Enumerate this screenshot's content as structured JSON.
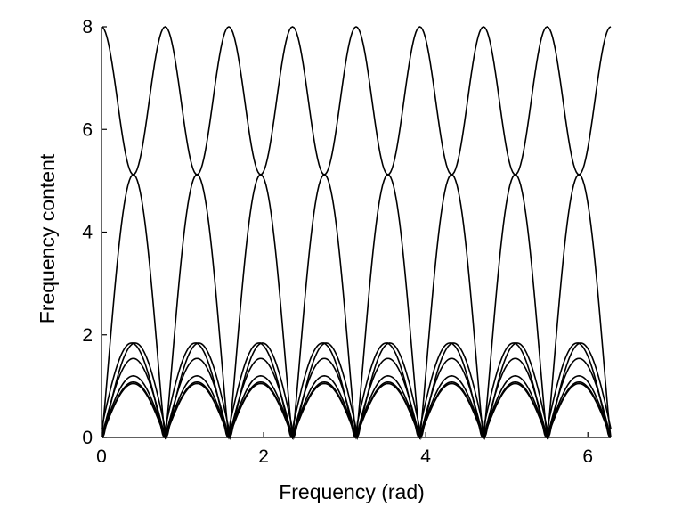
{
  "chart_data": {
    "type": "line",
    "title": "",
    "xlabel": "Frequency (rad)",
    "ylabel": "Frequency content",
    "xlim": [
      0,
      6.2832
    ],
    "ylim": [
      0,
      8
    ],
    "xticks": [
      0,
      2,
      4,
      6
    ],
    "yticks": [
      0,
      2,
      4,
      6,
      8
    ],
    "xtick_labels": [
      "0",
      "2",
      "4",
      "6"
    ],
    "ytick_labels": [
      "0",
      "2",
      "4",
      "6",
      "8"
    ],
    "grid": false,
    "legend": "none",
    "line_color": "#000000",
    "series": [
      {
        "kind": "main-lobe",
        "x": [
          0,
          0.3927,
          0.7854,
          1.1781,
          1.5708,
          1.9635,
          2.3562,
          2.7489,
          3.1416,
          3.5343,
          3.927,
          4.3197,
          4.7124,
          5.1051,
          5.4978,
          5.8905,
          6.2832
        ],
        "y": [
          8,
          5.12,
          0,
          5.12,
          8,
          5.12,
          0,
          5.12,
          8,
          5.12,
          0,
          5.12,
          8,
          5.12,
          0,
          5.12,
          8
        ]
      },
      {
        "kind": "main-lobe",
        "x": [
          0,
          0.3927,
          0.7854,
          1.1781,
          1.5708,
          1.9635,
          2.3562,
          2.7489,
          3.1416,
          3.5343,
          3.927,
          4.3197,
          4.7124,
          5.1051,
          5.4978,
          5.8905,
          6.2832
        ],
        "y": [
          0,
          5.12,
          8,
          5.12,
          0,
          5.12,
          8,
          5.12,
          0,
          5.12,
          8,
          5.12,
          0,
          5.12,
          8,
          5.12,
          0
        ]
      },
      {
        "kind": "side-lobe",
        "x": [
          0,
          0.3927,
          0.7854,
          1.1781,
          1.5708,
          1.9635,
          2.3562,
          2.7489,
          3.1416,
          3.5343,
          3.927,
          4.3197,
          4.7124,
          5.1051,
          5.4978,
          5.8905,
          6.2832
        ],
        "y": [
          0,
          1.84,
          0,
          1.84,
          0,
          1.84,
          0,
          1.84,
          0,
          1.84,
          0,
          1.84,
          0,
          1.84,
          0,
          1.84,
          0
        ],
        "peak_offset": -0.06
      },
      {
        "kind": "side-lobe",
        "x": [
          0,
          0.3927,
          0.7854,
          1.1781,
          1.5708,
          1.9635,
          2.3562,
          2.7489,
          3.1416,
          3.5343,
          3.927,
          4.3197,
          4.7124,
          5.1051,
          5.4978,
          5.8905,
          6.2832
        ],
        "y": [
          0,
          1.84,
          0,
          1.84,
          0,
          1.84,
          0,
          1.84,
          0,
          1.84,
          0,
          1.84,
          0,
          1.84,
          0,
          1.84,
          0
        ],
        "peak_offset": 0.06
      },
      {
        "kind": "side-lobe",
        "x": [
          0,
          0.3927,
          0.7854,
          1.1781,
          1.5708,
          1.9635,
          2.3562,
          2.7489,
          3.1416,
          3.5343,
          3.927,
          4.3197,
          4.7124,
          5.1051,
          5.4978,
          5.8905,
          6.2832
        ],
        "y": [
          0,
          1.54,
          0,
          1.54,
          0,
          1.54,
          0,
          1.54,
          0,
          1.54,
          0,
          1.54,
          0,
          1.54,
          0,
          1.54,
          0
        ],
        "peak_offset": 0
      },
      {
        "kind": "side-lobe",
        "x": [
          0,
          0.3927,
          0.7854,
          1.1781,
          1.5708,
          1.9635,
          2.3562,
          2.7489,
          3.1416,
          3.5343,
          3.927,
          4.3197,
          4.7124,
          5.1051,
          5.4978,
          5.8905,
          6.2832
        ],
        "y": [
          0,
          1.2,
          0,
          1.2,
          0,
          1.2,
          0,
          1.2,
          0,
          1.2,
          0,
          1.2,
          0,
          1.2,
          0,
          1.2,
          0
        ],
        "peak_offset": 0
      },
      {
        "kind": "side-lobe",
        "x": [
          0,
          0.3927,
          0.7854,
          1.1781,
          1.5708,
          1.9635,
          2.3562,
          2.7489,
          3.1416,
          3.5343,
          3.927,
          4.3197,
          4.7124,
          5.1051,
          5.4978,
          5.8905,
          6.2832
        ],
        "y": [
          0,
          1.08,
          0,
          1.08,
          0,
          1.08,
          0,
          1.08,
          0,
          1.08,
          0,
          1.08,
          0,
          1.08,
          0,
          1.08,
          0
        ],
        "peak_offset": 0
      },
      {
        "kind": "side-lobe",
        "x": [
          0,
          0.3927,
          0.7854,
          1.1781,
          1.5708,
          1.9635,
          2.3562,
          2.7489,
          3.1416,
          3.5343,
          3.927,
          4.3197,
          4.7124,
          5.1051,
          5.4978,
          5.8905,
          6.2832
        ],
        "y": [
          0,
          1.05,
          0,
          1.05,
          0,
          1.05,
          0,
          1.05,
          0,
          1.05,
          0,
          1.05,
          0,
          1.05,
          0,
          1.05,
          0
        ],
        "peak_offset": 0
      }
    ]
  }
}
